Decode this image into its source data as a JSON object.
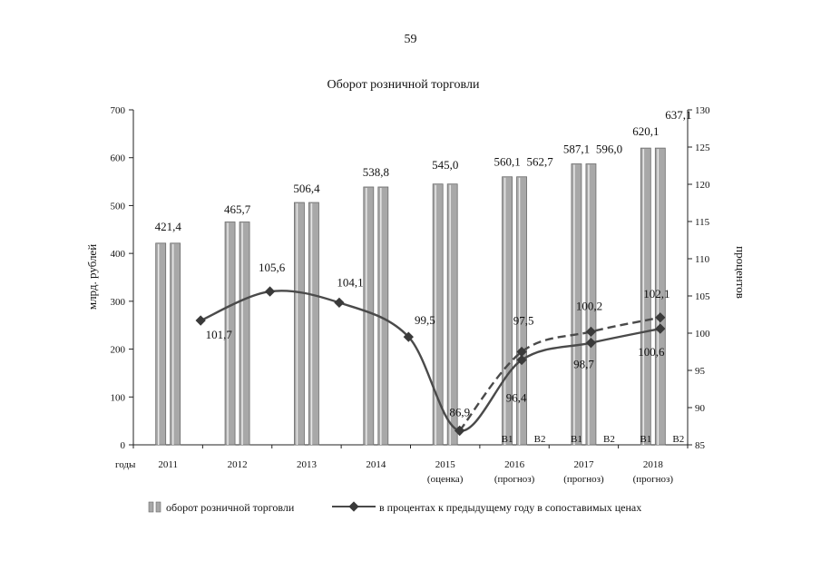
{
  "page_number": "59",
  "chart_data": {
    "type": "bar+line",
    "title": "Оборот розничной торговли",
    "ylabel_left": "млрд. рублей",
    "ylabel_right": "процентов",
    "ylim_left": [
      0,
      700
    ],
    "ylim_right": [
      85,
      130
    ],
    "yticks_left": [
      "0",
      "100",
      "200",
      "300",
      "400",
      "500",
      "600",
      "700"
    ],
    "yticks_right": [
      "85",
      "90",
      "95",
      "100",
      "105",
      "110",
      "115",
      "120",
      "125",
      "130"
    ],
    "x_axis_prefix": "годы",
    "categories": [
      {
        "year": "2011",
        "note": ""
      },
      {
        "year": "2012",
        "note": ""
      },
      {
        "year": "2013",
        "note": ""
      },
      {
        "year": "2014",
        "note": ""
      },
      {
        "year": "2015",
        "note": "(оценка)"
      },
      {
        "year": "2016",
        "note": "(прогноз)"
      },
      {
        "year": "2017",
        "note": "(прогноз)"
      },
      {
        "year": "2018",
        "note": "(прогноз)"
      }
    ],
    "variant_labels": [
      "B1",
      "B2"
    ],
    "bars": [
      {
        "cat": 0,
        "value": 421.4,
        "label": "421,4"
      },
      {
        "cat": 1,
        "value": 465.7,
        "label": "465,7"
      },
      {
        "cat": 2,
        "value": 506.4,
        "label": "506,4"
      },
      {
        "cat": 3,
        "value": 538.8,
        "label": "538,8"
      },
      {
        "cat": 4,
        "value": 545.0,
        "label": "545,0"
      },
      {
        "cat": 5,
        "variant": "B1",
        "value": 560.1,
        "label": "560,1"
      },
      {
        "cat": 5,
        "variant": "B2",
        "value": null,
        "label": "562,7"
      },
      {
        "cat": 6,
        "variant": "B1",
        "value": 587.1,
        "label": "587,1"
      },
      {
        "cat": 6,
        "variant": "B2",
        "value": null,
        "label": "596,0"
      },
      {
        "cat": 7,
        "variant": "B1",
        "value": 620.1,
        "label": "620,1"
      },
      {
        "cat": 7,
        "variant": "B2",
        "value": null,
        "label": "637,1"
      }
    ],
    "series": [
      {
        "name": "в процентах к предыдущему году в сопоставимых ценах (вариант 1)",
        "style": "solid",
        "points": [
          {
            "cat": 0,
            "value": 101.7,
            "label": "101,7"
          },
          {
            "cat": 1,
            "value": 105.6,
            "label": "105,6"
          },
          {
            "cat": 2,
            "value": 104.1,
            "label": "104,1"
          },
          {
            "cat": 3,
            "value": 99.5,
            "label": "99,5"
          },
          {
            "cat": 4,
            "value": 86.9,
            "label": "86,9"
          },
          {
            "cat": 5,
            "value": 96.4,
            "label": "96,4"
          },
          {
            "cat": 6,
            "value": 98.7,
            "label": "98,7"
          },
          {
            "cat": 7,
            "value": 100.6,
            "label": "100,6"
          }
        ]
      },
      {
        "name": "в процентах к предыдущему году в сопоставимых ценах (вариант 2)",
        "style": "dashed",
        "points": [
          {
            "cat": 4,
            "value": 86.9,
            "label": ""
          },
          {
            "cat": 5,
            "value": 97.5,
            "label": "97,5"
          },
          {
            "cat": 6,
            "value": 100.2,
            "label": "100,2"
          },
          {
            "cat": 7,
            "value": 102.1,
            "label": "102,1"
          }
        ]
      }
    ],
    "legend": {
      "bars": "оборот розничной торговли",
      "line": "в процентах к предыдущему году в сопоставимых ценах"
    }
  },
  "colors": {
    "bar_fill": "#a8a8a8",
    "bar_edge": "#6a6a6a",
    "line": "#4a4a4a",
    "marker": "#3a3a3a",
    "axis": "#222222"
  }
}
